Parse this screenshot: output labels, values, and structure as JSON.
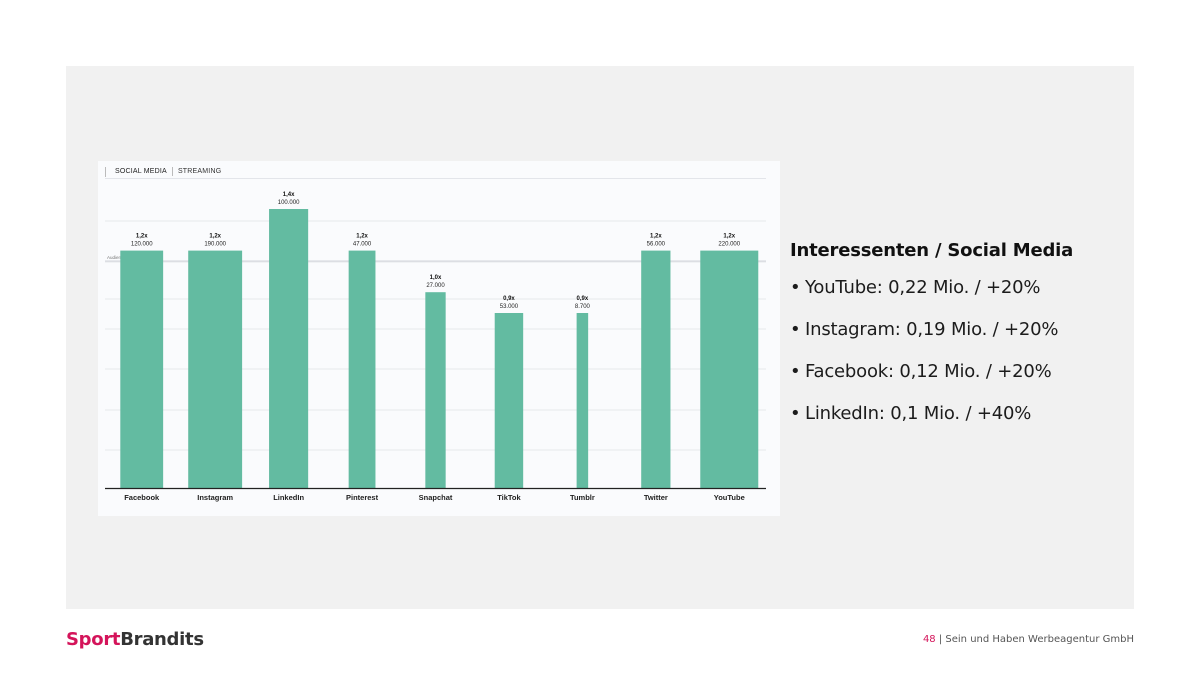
{
  "tabs": [
    "SOCIAL MEDIA",
    "STREAMING"
  ],
  "chart_data": {
    "type": "bar",
    "categories": [
      "Facebook",
      "Instagram",
      "LinkedIn",
      "Pinterest",
      "Snapchat",
      "TikTok",
      "Tumblr",
      "Twitter",
      "YouTube"
    ],
    "values": [
      120000,
      190000,
      100000,
      47000,
      27000,
      53000,
      8700,
      56000,
      220000
    ],
    "value_labels": [
      "120.000",
      "190.000",
      "100.000",
      "47.000",
      "27.000",
      "53.000",
      "8.700",
      "56.000",
      "220.000"
    ],
    "index_labels": [
      "1,2x",
      "1,2x",
      "1,4x",
      "1,2x",
      "1,0x",
      "0,9x",
      "0,9x",
      "1,2x",
      "1,2x"
    ],
    "index_values": [
      1.2,
      1.2,
      1.4,
      1.2,
      1.0,
      0.9,
      0.9,
      1.2,
      1.2
    ],
    "reference_line": {
      "value": 1.15,
      "label": "Audience average 1,15"
    },
    "grid": true,
    "legend": "none",
    "bar_color": "#63bba1"
  },
  "panel": {
    "heading": "Interessenten / Social Media",
    "bullets": [
      "YouTube: 0,22 Mio. / +20%",
      "Instagram: 0,19 Mio. / +20%",
      "Facebook: 0,12 Mio. / +20%",
      "LinkedIn: 0,1 Mio. / +40%"
    ]
  },
  "logo": {
    "part1": "Sport",
    "part2": "Brandits"
  },
  "footer": {
    "page": "48",
    "text": " | Sein und Haben Werbeagentur GmbH"
  }
}
